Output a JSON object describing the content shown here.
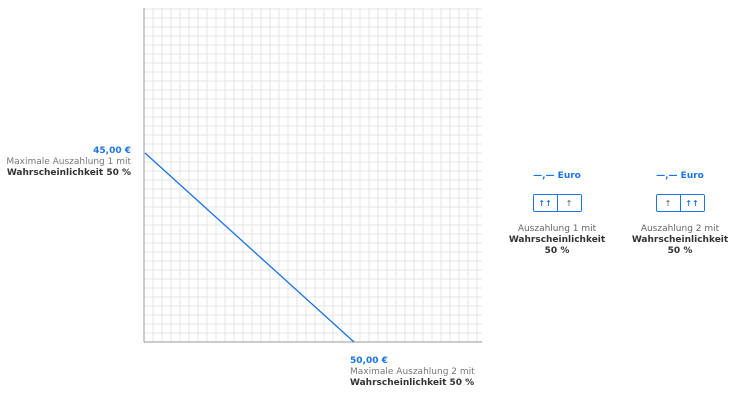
{
  "y_axis_label": {
    "value": "45,00 €",
    "line1": "Maximale Auszahlung 1 mit",
    "line2": "Wahrscheinlichkeit 50 %"
  },
  "x_axis_label": {
    "value": "50,00 €",
    "line1": "Maximale Auszahlung 2 mit",
    "line2": "Wahrscheinlichkeit 50 %"
  },
  "colors": {
    "accent": "#1a73e8",
    "grid": "#e6e6e6",
    "axis": "#9a9a9a"
  },
  "panels": [
    {
      "euro": "—,— Euro",
      "buttons": [
        "↑↑",
        "↑"
      ],
      "active_button": 0,
      "caption_line1": "Auszahlung 1 mit",
      "caption_line2": "Wahrscheinlichkeit 50 %"
    },
    {
      "euro": "—,— Euro",
      "buttons": [
        "↑",
        "↑↑"
      ],
      "active_button": 1,
      "caption_line1": "Auszahlung 2 mit",
      "caption_line2": "Wahrscheinlichkeit 50 %"
    }
  ]
}
